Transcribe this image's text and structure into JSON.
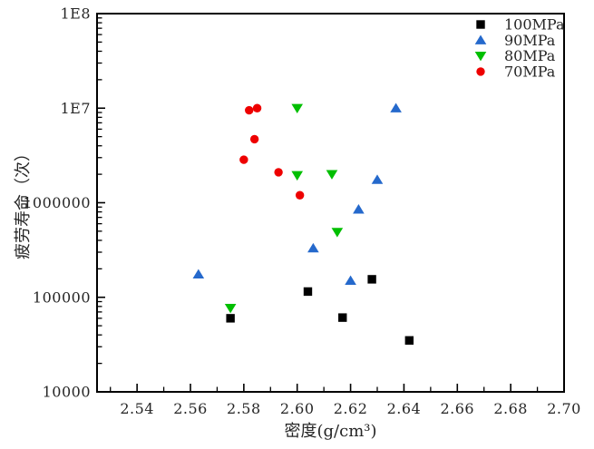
{
  "figure": {
    "background": "#ffffff",
    "frame_color": "#000000",
    "text_color": "#262626"
  },
  "chart_data": {
    "type": "scatter",
    "title": "",
    "xlabel": "密度(g/cm³)",
    "ylabel": "疲劳寿命（次）",
    "grid": "off",
    "x_axis": {
      "scale": "linear",
      "min": 2.525,
      "max": 2.7,
      "major_ticks": [
        2.54,
        2.56,
        2.58,
        2.6,
        2.62,
        2.64,
        2.66,
        2.68,
        2.7
      ],
      "tick_labels": [
        "2.54",
        "2.56",
        "2.58",
        "2.60",
        "2.62",
        "2.64",
        "2.66",
        "2.68",
        "2.70"
      ],
      "minor_ticks": [
        2.53,
        2.55,
        2.57,
        2.59,
        2.61,
        2.63,
        2.65,
        2.67,
        2.69
      ]
    },
    "y_axis": {
      "scale": "log",
      "min": 10000,
      "max": 100000000,
      "major_ticks": [
        10000,
        100000,
        1000000,
        10000000,
        100000000
      ],
      "tick_labels": [
        "10000",
        "100000",
        "1000000",
        "1E7",
        "1E8"
      ]
    },
    "legend": {
      "position": "top-right-inside",
      "border": false,
      "entries": [
        "100MPa",
        "90MPa",
        "80MPa",
        "70MPa"
      ]
    },
    "series": [
      {
        "name": "100MPa",
        "marker": "square",
        "color": "#000000",
        "points": [
          [
            2.575,
            60000
          ],
          [
            2.604,
            115000
          ],
          [
            2.617,
            61000
          ],
          [
            2.628,
            155000
          ],
          [
            2.642,
            35000
          ]
        ]
      },
      {
        "name": "90MPa",
        "marker": "triangle-up",
        "color": "#2569cc",
        "points": [
          [
            2.563,
            175000
          ],
          [
            2.606,
            330000
          ],
          [
            2.62,
            150000
          ],
          [
            2.623,
            850000
          ],
          [
            2.63,
            1750000
          ],
          [
            2.637,
            10000000
          ]
        ]
      },
      {
        "name": "80MPa",
        "marker": "triangle-down",
        "color": "#00bf00",
        "points": [
          [
            2.575,
            77000
          ],
          [
            2.6,
            1950000
          ],
          [
            2.6,
            10000000
          ],
          [
            2.613,
            2000000
          ],
          [
            2.615,
            490000
          ]
        ]
      },
      {
        "name": "70MPa",
        "marker": "circle",
        "color": "#ee0000",
        "points": [
          [
            2.58,
            2850000
          ],
          [
            2.582,
            9500000
          ],
          [
            2.584,
            4700000
          ],
          [
            2.585,
            10000000
          ],
          [
            2.593,
            2100000
          ],
          [
            2.601,
            1200000
          ]
        ]
      }
    ]
  }
}
